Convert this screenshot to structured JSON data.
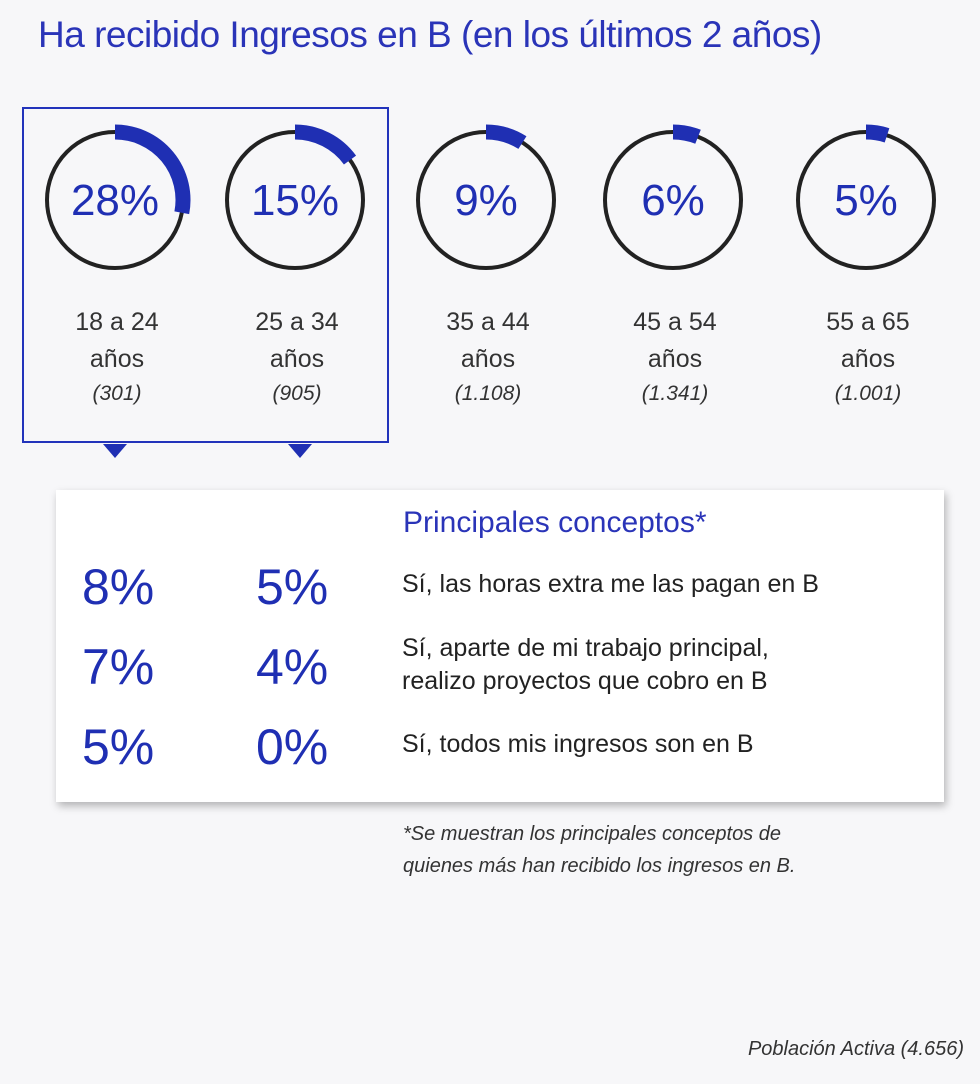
{
  "title": "Ha recibido Ingresos en B (en los últimos 2 años)",
  "chart_data": {
    "type": "gauge",
    "title": "Ha recibido Ingresos en B (en los últimos 2 años)",
    "categories": [
      "18 a 24 años",
      "25 a 34 años",
      "35 a 44 años",
      "45 a 54 años",
      "55 a 65 años"
    ],
    "values": [
      28,
      15,
      9,
      6,
      5
    ],
    "series": [
      {
        "label_top": "28%",
        "age_line1": "18 a 24",
        "age_line2": "años",
        "n": "(301)",
        "value": 28
      },
      {
        "label_top": "15%",
        "age_line1": "25 a 34",
        "age_line2": "años",
        "n": "(905)",
        "value": 15
      },
      {
        "label_top": "9%",
        "age_line1": "35 a 44",
        "age_line2": "años",
        "n": "(1.108)",
        "value": 9
      },
      {
        "label_top": "6%",
        "age_line1": "45 a 54",
        "age_line2": "años",
        "n": "(1.341)",
        "value": 6
      },
      {
        "label_top": "5%",
        "age_line1": "55 a 65",
        "age_line2": "años",
        "n": "(1.001)",
        "value": 5
      }
    ],
    "concepts_title": "Principales conceptos*",
    "concepts": [
      {
        "a": "8%",
        "b": "5%",
        "line1": "Sí, las horas extra me las pagan en B",
        "line2": ""
      },
      {
        "a": "7%",
        "b": "4%",
        "line1": "Sí, aparte de mi trabajo principal,",
        "line2": "realizo proyectos que cobro en B"
      },
      {
        "a": "5%",
        "b": "0%",
        "line1": "Sí, todos mis ingresos son en B",
        "line2": ""
      }
    ]
  },
  "footnote_line1": "*Se muestran los principales conceptos de",
  "footnote_line2": "quienes más han recibido los ingresos en B.",
  "source": "Población Activa (4.656)",
  "colors": {
    "accent": "#1f2fb3",
    "ring": "#222222",
    "text": "#333333"
  }
}
